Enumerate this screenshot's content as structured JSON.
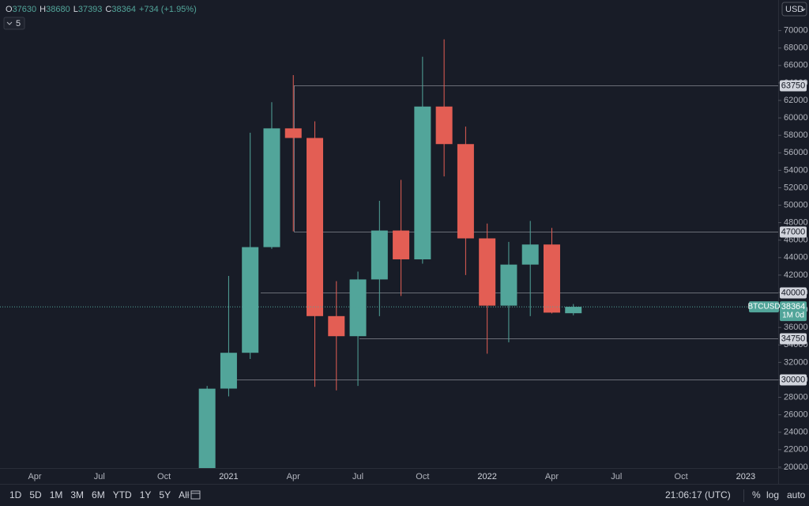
{
  "chart_data": {
    "type": "candlestick",
    "symbol": "BTCUSD",
    "interval": "1M 0d",
    "currency": "USD",
    "indicator_count": "5",
    "ohlc_labels": [
      "O",
      "H",
      "L",
      "C"
    ],
    "change": "+734 (+1.95%)",
    "categories": [
      "Apr",
      null,
      null,
      "Jul",
      null,
      null,
      "Oct",
      null,
      null,
      "2021",
      null,
      null,
      "Apr",
      null,
      null,
      "Jul",
      null,
      null,
      "Oct",
      null,
      null,
      "2022",
      null,
      null,
      "Apr",
      null,
      null,
      "Jul",
      null,
      null,
      "Oct",
      null,
      null,
      "2023"
    ],
    "series": {
      "open": [
        null,
        null,
        null,
        null,
        null,
        null,
        null,
        null,
        19700,
        29000,
        33100,
        45200,
        58800,
        57700,
        37300,
        35000,
        41500,
        47100,
        43800,
        61300,
        57000,
        46200,
        38500,
        43200,
        45500,
        37630,
        null,
        null,
        null,
        null,
        null,
        null,
        null,
        null
      ],
      "high": [
        null,
        null,
        null,
        null,
        null,
        null,
        null,
        null,
        29300,
        41900,
        58300,
        61800,
        64900,
        59600,
        41300,
        42400,
        50500,
        52900,
        67000,
        69000,
        59000,
        47900,
        45800,
        48200,
        47400,
        38680,
        null,
        null,
        null,
        null,
        null,
        null,
        null,
        null
      ],
      "low": [
        null,
        null,
        null,
        null,
        null,
        null,
        null,
        null,
        17600,
        28100,
        32400,
        45000,
        47000,
        29200,
        28800,
        29300,
        37300,
        39600,
        43300,
        53300,
        42000,
        33000,
        34300,
        37300,
        37600,
        37393,
        null,
        null,
        null,
        null,
        null,
        null,
        null,
        null
      ],
      "close": [
        null,
        null,
        null,
        null,
        null,
        null,
        null,
        null,
        28990,
        33100,
        45200,
        58800,
        57700,
        37300,
        35000,
        41500,
        47100,
        43800,
        61300,
        57000,
        46200,
        38500,
        43200,
        45500,
        37700,
        38364,
        null,
        null,
        null,
        null,
        null,
        null,
        null,
        null
      ]
    },
    "up_color": "#52a59a",
    "down_color": "#e35e54",
    "levels": [
      63750,
      47000,
      40000,
      34750,
      30000
    ],
    "ylim": [
      19900,
      73500
    ],
    "yticks": [
      20000,
      22000,
      24000,
      26000,
      28000,
      30000,
      32000,
      34000,
      36000,
      38000,
      40000,
      42000,
      44000,
      46000,
      48000,
      50000,
      52000,
      54000,
      56000,
      58000,
      60000,
      62000,
      64000,
      66000,
      68000,
      70000
    ],
    "grid": false
  },
  "toolbar": {
    "ranges": [
      "1D",
      "5D",
      "1M",
      "3M",
      "6M",
      "YTD",
      "1Y",
      "5Y",
      "All"
    ],
    "clock": "21:06:17 (UTC)",
    "options": [
      "%",
      "log",
      "auto"
    ]
  }
}
